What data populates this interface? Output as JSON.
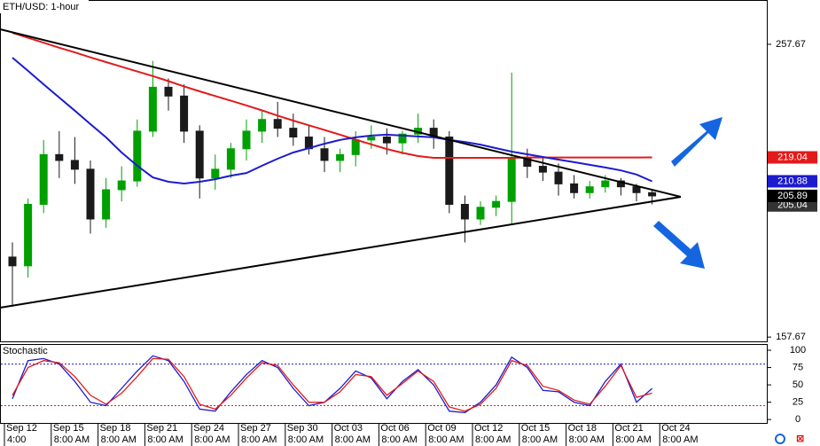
{
  "chart_data": {
    "type": "candlestick",
    "title": "ETH/USD: 1-hour",
    "candles": {
      "open": [
        185,
        182,
        203,
        220,
        218,
        215,
        198,
        208,
        211,
        228,
        243,
        240,
        228,
        212,
        215,
        222,
        228,
        232,
        229,
        226,
        222,
        218,
        220,
        225,
        226,
        224,
        227,
        229,
        226,
        203,
        198,
        202,
        204,
        219,
        216,
        214,
        210,
        207,
        209,
        211,
        209,
        207
      ],
      "high": [
        190,
        205,
        225,
        228,
        226,
        218,
        212,
        216,
        232,
        252,
        246,
        244,
        230,
        220,
        224,
        232,
        235,
        238,
        234,
        230,
        226,
        222,
        228,
        230,
        229,
        228,
        234,
        232,
        228,
        206,
        204,
        206,
        248,
        222,
        219,
        217,
        213,
        211,
        213,
        212,
        210,
        208
      ],
      "low": [
        168,
        178,
        200,
        212,
        210,
        193,
        195,
        204,
        209,
        226,
        235,
        224,
        205,
        208,
        212,
        218,
        224,
        226,
        223,
        220,
        214,
        214,
        216,
        222,
        220,
        220,
        224,
        222,
        200,
        190,
        196,
        199,
        196,
        212,
        211,
        206,
        205,
        205,
        207,
        206,
        204,
        203
      ],
      "close": [
        182,
        203,
        220,
        218,
        215,
        198,
        208,
        211,
        228,
        243,
        240,
        228,
        212,
        215,
        222,
        228,
        232,
        229,
        226,
        222,
        218,
        220,
        225,
        226,
        224,
        227,
        229,
        226,
        203,
        198,
        202,
        204,
        219,
        216,
        214,
        210,
        207,
        209,
        211,
        209,
        207,
        205.89
      ]
    },
    "up_color": "#00a000",
    "down_color": "#1a1a1a",
    "series": [
      {
        "color": "#e31a1a",
        "values": [
          261.6,
          259.9,
          258.2,
          256.5,
          254.9,
          253.2,
          251.6,
          250.0,
          248.4,
          246.8,
          245.1,
          243.3,
          241.6,
          240.0,
          238.4,
          236.8,
          235.1,
          233.3,
          231.6,
          230.0,
          228.4,
          226.8,
          225.1,
          223.5,
          221.9,
          220.6,
          219.5,
          218.9,
          218.9,
          218.9,
          218.9,
          218.9,
          218.9,
          219.0,
          219.0,
          219.0,
          219.0,
          219.0,
          219.0,
          219.0,
          219.0,
          219.04
        ]
      },
      {
        "color": "#1c1ccf",
        "values": [
          253.1,
          248.6,
          244.0,
          239.5,
          235.0,
          230.4,
          225.9,
          220.7,
          216.2,
          212.2,
          210.7,
          210.1,
          210.7,
          211.6,
          212.8,
          213.7,
          216.2,
          218.6,
          220.7,
          222.2,
          223.7,
          225.0,
          225.9,
          226.5,
          226.8,
          226.5,
          226.2,
          225.9,
          225.0,
          224.3,
          223.4,
          222.2,
          221.0,
          220.1,
          219.2,
          218.3,
          217.4,
          216.5,
          215.6,
          214.6,
          213.2,
          210.88
        ]
      }
    ],
    "ylim": [
      156.2,
      272.8
    ],
    "yticks": [
      157.67,
      257.67
    ],
    "price_tags": [
      {
        "value": 219.04,
        "color": "#e31a1a"
      },
      {
        "value": 210.88,
        "color": "#1c1ccf"
      },
      {
        "value": 205.04,
        "color": "#333333"
      },
      {
        "value": 205.89,
        "color": "#000000"
      }
    ],
    "xtick_labels": [
      "Sep 12",
      "Sep 15",
      "Sep 18",
      "Sep 21",
      "Sep 24",
      "Sep 27",
      "Sep 30",
      "Oct 03",
      "Oct 06",
      "Oct 09",
      "Oct 12",
      "Oct 15",
      "Oct 18",
      "Oct 21",
      "Oct 24"
    ],
    "xtick_sublabels": [
      "4:00",
      "8:00 AM",
      "8:00 AM",
      "8:00 AM",
      "8:00 AM",
      "8:00 AM",
      "8:00 AM",
      "8:00 AM",
      "8:00 AM",
      "8:00 AM",
      "8:00 AM",
      "8:00 AM",
      "8:00 AM",
      "8:00 AM",
      "8:00 AM"
    ],
    "stochastic": {
      "title": "Stochastic",
      "ylim": [
        -5,
        109
      ],
      "yticks": [
        0,
        25,
        50,
        75,
        100
      ],
      "levels": [
        {
          "value": 80,
          "color": "#1c1ccf"
        },
        {
          "value": 20,
          "color": "#e31a1a"
        }
      ],
      "series": [
        {
          "color": "#1c1ccf",
          "values": [
            30,
            85,
            88,
            80,
            55,
            25,
            20,
            45,
            70,
            92,
            85,
            55,
            15,
            12,
            40,
            65,
            85,
            75,
            45,
            20,
            25,
            45,
            70,
            60,
            30,
            55,
            72,
            50,
            12,
            10,
            25,
            50,
            90,
            75,
            42,
            40,
            25,
            20,
            55,
            80,
            25,
            45
          ]
        },
        {
          "color": "#e31a1a",
          "values": [
            35,
            75,
            85,
            82,
            62,
            35,
            22,
            38,
            62,
            88,
            87,
            62,
            22,
            15,
            35,
            60,
            82,
            78,
            50,
            25,
            25,
            40,
            65,
            62,
            35,
            52,
            70,
            55,
            18,
            12,
            22,
            45,
            85,
            78,
            48,
            42,
            28,
            22,
            48,
            78,
            32,
            38
          ]
        }
      ]
    }
  }
}
